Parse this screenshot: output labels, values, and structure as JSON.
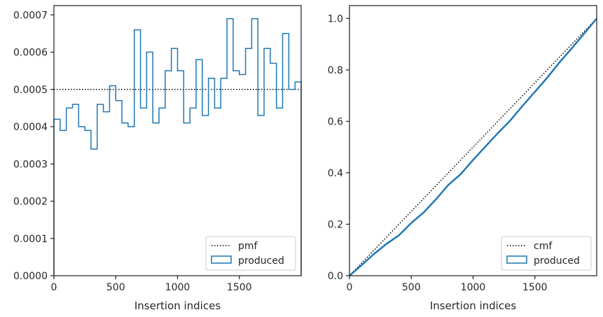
{
  "chart_data": [
    {
      "type": "step",
      "title": "",
      "xlabel": "Insertion indices",
      "ylabel": "",
      "xlim": [
        0,
        2000
      ],
      "ylim": [
        0,
        0.000725
      ],
      "xticks": [
        0,
        500,
        1000,
        1500
      ],
      "xtick_labels": [
        "0",
        "500",
        "1000",
        "1500"
      ],
      "yticks": [
        0,
        0.0001,
        0.0002,
        0.0003,
        0.0004,
        0.0005,
        0.0006,
        0.0007
      ],
      "ytick_labels": [
        "0.0000",
        "0.0001",
        "0.0002",
        "0.0003",
        "0.0004",
        "0.0005",
        "0.0006",
        "0.0007"
      ],
      "legend_position": "lower-right",
      "grid": false,
      "reference": {
        "name": "pmf",
        "value": 0.0005,
        "style": "dotted",
        "color": "#000000"
      },
      "series": [
        {
          "name": "produced",
          "color": "#1f77b4",
          "bin_width": 50,
          "x": [
            0,
            50,
            100,
            150,
            200,
            250,
            300,
            350,
            400,
            450,
            500,
            550,
            600,
            650,
            700,
            750,
            800,
            850,
            900,
            950,
            1000,
            1050,
            1100,
            1150,
            1200,
            1250,
            1300,
            1350,
            1400,
            1450,
            1500,
            1550,
            1600,
            1650,
            1700,
            1750,
            1800,
            1850,
            1900,
            1950
          ],
          "values": [
            0.00042,
            0.00039,
            0.00045,
            0.00046,
            0.0004,
            0.00039,
            0.00034,
            0.00046,
            0.00044,
            0.00051,
            0.00047,
            0.00041,
            0.0004,
            0.00066,
            0.00045,
            0.0006,
            0.00041,
            0.00045,
            0.00055,
            0.00061,
            0.00055,
            0.00041,
            0.00045,
            0.00058,
            0.00043,
            0.00053,
            0.00045,
            0.00053,
            0.00069,
            0.00055,
            0.00054,
            0.00061,
            0.00069,
            0.00043,
            0.00061,
            0.00057,
            0.00045,
            0.00065,
            0.0005,
            0.00052
          ]
        }
      ]
    },
    {
      "type": "line",
      "title": "",
      "xlabel": "Insertion indices",
      "ylabel": "",
      "xlim": [
        0,
        2000
      ],
      "ylim": [
        0,
        1.05
      ],
      "xticks": [
        0,
        500,
        1000,
        1500
      ],
      "xtick_labels": [
        "0",
        "500",
        "1000",
        "1500"
      ],
      "yticks": [
        0,
        0.2,
        0.4,
        0.6,
        0.8,
        1.0
      ],
      "ytick_labels": [
        "0.0",
        "0.2",
        "0.4",
        "0.6",
        "0.8",
        "1.0"
      ],
      "legend_position": "lower-right",
      "grid": false,
      "reference": {
        "name": "cmf",
        "x": [
          0,
          2000
        ],
        "y": [
          0,
          1.0
        ],
        "style": "dotted",
        "color": "#000000"
      },
      "series": [
        {
          "name": "produced",
          "color": "#1f77b4",
          "x": [
            0,
            100,
            200,
            300,
            400,
            500,
            600,
            700,
            800,
            900,
            1000,
            1100,
            1200,
            1300,
            1400,
            1500,
            1600,
            1700,
            1800,
            1900,
            2000
          ],
          "y": [
            0.0,
            0.042,
            0.085,
            0.124,
            0.157,
            0.205,
            0.246,
            0.297,
            0.353,
            0.395,
            0.45,
            0.502,
            0.554,
            0.603,
            0.66,
            0.715,
            0.77,
            0.83,
            0.885,
            0.942,
            1.0
          ]
        }
      ]
    }
  ]
}
